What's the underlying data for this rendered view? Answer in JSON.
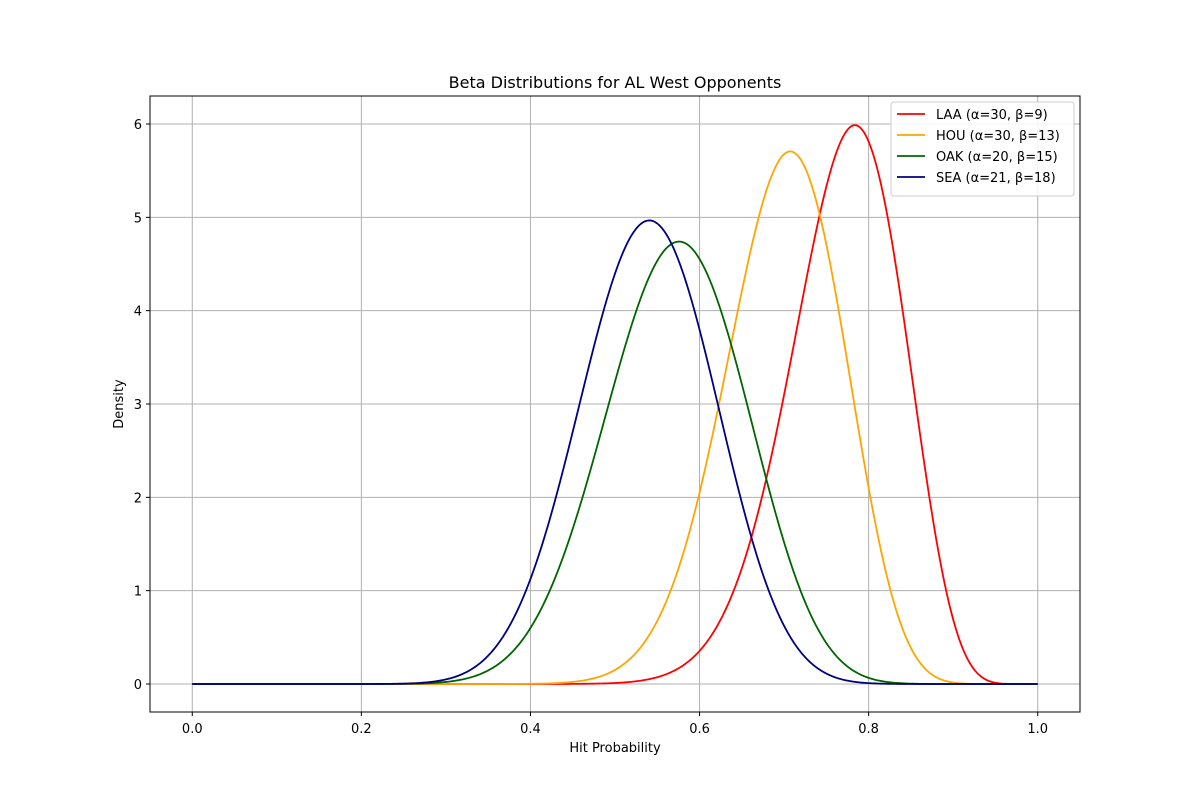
{
  "chart_data": {
    "type": "line",
    "title": "Beta Distributions for AL West Opponents",
    "xlabel": "Hit Probability",
    "ylabel": "Density",
    "xlim": [
      -0.05,
      1.05
    ],
    "ylim": [
      -0.3,
      6.3
    ],
    "xticks": [
      0.0,
      0.2,
      0.4,
      0.6,
      0.8,
      1.0
    ],
    "xtick_labels": [
      "0.0",
      "0.2",
      "0.4",
      "0.6",
      "0.8",
      "1.0"
    ],
    "yticks": [
      0,
      1,
      2,
      3,
      4,
      5,
      6
    ],
    "ytick_labels": [
      "0",
      "1",
      "2",
      "3",
      "4",
      "5",
      "6"
    ],
    "grid": true,
    "legend_position": "top-right",
    "series": [
      {
        "name": "LAA (α=30, β=9)",
        "color": "#ff0000",
        "alpha": 30,
        "beta": 9
      },
      {
        "name": "HOU (α=30, β=13)",
        "color": "#ffa500",
        "alpha": 30,
        "beta": 13
      },
      {
        "name": "OAK (α=20, β=15)",
        "color": "#006400",
        "alpha": 20,
        "beta": 15
      },
      {
        "name": "SEA (α=21, β=18)",
        "color": "#000080",
        "alpha": 21,
        "beta": 18
      }
    ]
  }
}
